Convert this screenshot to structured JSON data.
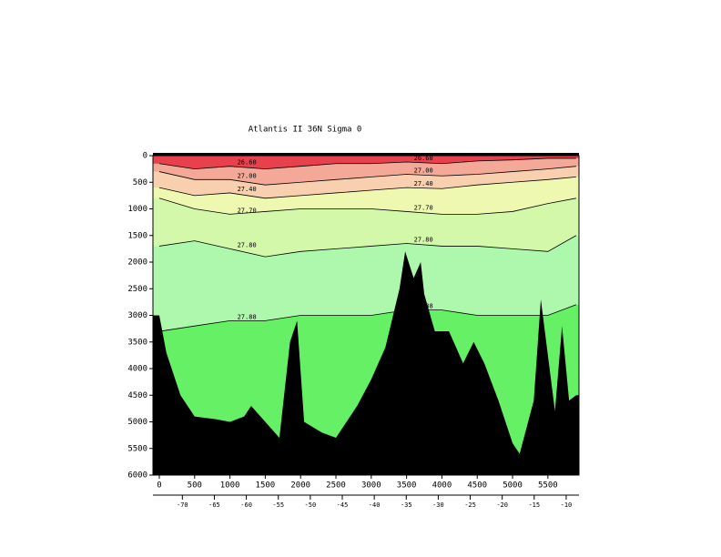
{
  "chart_data": {
    "type": "section",
    "title": "Atlantis II  36N Sigma 0",
    "x": [
      0,
      500,
      1000,
      1500,
      2000,
      2500,
      3000,
      3500,
      4000,
      4500,
      5000,
      5500,
      5900
    ],
    "deep_color": "#66f066",
    "series": [
      {
        "name": "27.88",
        "color": "#aef8ae",
        "values": [
          3300,
          3200,
          3100,
          3100,
          3000,
          3000,
          3000,
          2900,
          2900,
          3000,
          3000,
          3000,
          2800
        ]
      },
      {
        "name": "27.80",
        "color": "#d4f8aa",
        "values": [
          1700,
          1600,
          1750,
          1900,
          1800,
          1750,
          1700,
          1650,
          1700,
          1700,
          1750,
          1800,
          1500
        ]
      },
      {
        "name": "27.70",
        "color": "#eef8b0",
        "values": [
          800,
          1000,
          1100,
          1050,
          1000,
          1000,
          1000,
          1050,
          1100,
          1100,
          1050,
          900,
          800
        ]
      },
      {
        "name": "27.40",
        "color": "#f8d0b0",
        "values": [
          600,
          750,
          700,
          800,
          750,
          700,
          650,
          600,
          620,
          550,
          500,
          450,
          400
        ]
      },
      {
        "name": "27.00",
        "color": "#f4a898",
        "values": [
          300,
          450,
          450,
          550,
          500,
          450,
          400,
          350,
          380,
          350,
          300,
          250,
          200
        ]
      },
      {
        "name": "26.60",
        "color": "#e8404c",
        "values": [
          150,
          250,
          200,
          250,
          200,
          150,
          150,
          120,
          150,
          100,
          80,
          50,
          50
        ]
      }
    ],
    "bathymetry": {
      "color": "#000000",
      "x": [
        -90,
        0,
        100,
        300,
        500,
        800,
        1000,
        1200,
        1300,
        1500,
        1700,
        1850,
        1950,
        2050,
        2300,
        2500,
        2800,
        3000,
        3200,
        3400,
        3480,
        3600,
        3700,
        3750,
        3900,
        4100,
        4300,
        4450,
        4600,
        4800,
        5000,
        5100,
        5300,
        5400,
        5600,
        5700,
        5800,
        5900,
        5940
      ],
      "values": [
        3000,
        3000,
        3700,
        4500,
        4900,
        4950,
        5000,
        4900,
        4700,
        5000,
        5300,
        3500,
        3100,
        5000,
        5200,
        5300,
        4700,
        4200,
        3600,
        2500,
        1800,
        2300,
        2000,
        2600,
        3300,
        3300,
        3900,
        3500,
        3900,
        4600,
        5400,
        5600,
        4600,
        2700,
        4800,
        3200,
        4600,
        4500,
        4500
      ]
    },
    "xlim": [
      -90,
      5940
    ],
    "xticks": [
      0,
      500,
      1000,
      1500,
      2000,
      2500,
      3000,
      3500,
      4000,
      4500,
      5000,
      5500
    ],
    "ylim": [
      0,
      6000
    ],
    "yticks": [
      0,
      500,
      1000,
      1500,
      2000,
      2500,
      3000,
      3500,
      4000,
      4500,
      5000,
      5500,
      6000
    ],
    "lonlim": [
      -74.6,
      -8.0
    ],
    "lonticks": [
      -70,
      -65,
      -60,
      -55,
      -50,
      -45,
      -40,
      -35,
      -30,
      -25,
      -20,
      -15,
      -10
    ]
  }
}
